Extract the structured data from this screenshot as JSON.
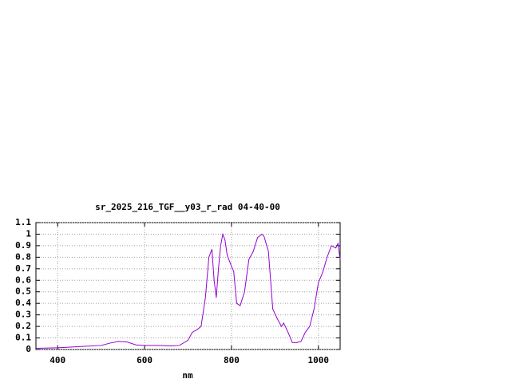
{
  "chart_data": {
    "type": "line",
    "title": "sr_2025_216_TGF__y03_r_rad 04-40-00",
    "x_label": "nm",
    "x": [
      350,
      400,
      450,
      500,
      520,
      540,
      560,
      580,
      600,
      640,
      660,
      680,
      700,
      710,
      720,
      730,
      740,
      748,
      755,
      760,
      765,
      770,
      775,
      780,
      785,
      790,
      800,
      805,
      812,
      820,
      830,
      840,
      850,
      860,
      870,
      875,
      885,
      895,
      905,
      915,
      920,
      930,
      940,
      950,
      960,
      970,
      980,
      990,
      1000,
      1010,
      1020,
      1030,
      1040,
      1045,
      1050
    ],
    "values": [
      0.01,
      0.015,
      0.025,
      0.035,
      0.055,
      0.07,
      0.065,
      0.04,
      0.035,
      0.035,
      0.03,
      0.035,
      0.08,
      0.15,
      0.17,
      0.2,
      0.45,
      0.8,
      0.87,
      0.6,
      0.45,
      0.7,
      0.9,
      1.0,
      0.95,
      0.82,
      0.72,
      0.68,
      0.4,
      0.38,
      0.5,
      0.78,
      0.85,
      0.97,
      1.0,
      0.98,
      0.85,
      0.35,
      0.27,
      0.2,
      0.23,
      0.15,
      0.06,
      0.06,
      0.07,
      0.15,
      0.2,
      0.35,
      0.58,
      0.67,
      0.8,
      0.9,
      0.88,
      0.92,
      0.78
    ],
    "color": "#9400d3",
    "xlim": [
      350,
      1050
    ],
    "xticks": [
      400,
      600,
      800,
      1000
    ],
    "ylim": [
      0,
      1.1
    ],
    "yticks": [
      0,
      0.1,
      0.2,
      0.3,
      0.4,
      0.5,
      0.6,
      0.7,
      0.8,
      0.9,
      1,
      1.1
    ],
    "grid": true
  }
}
